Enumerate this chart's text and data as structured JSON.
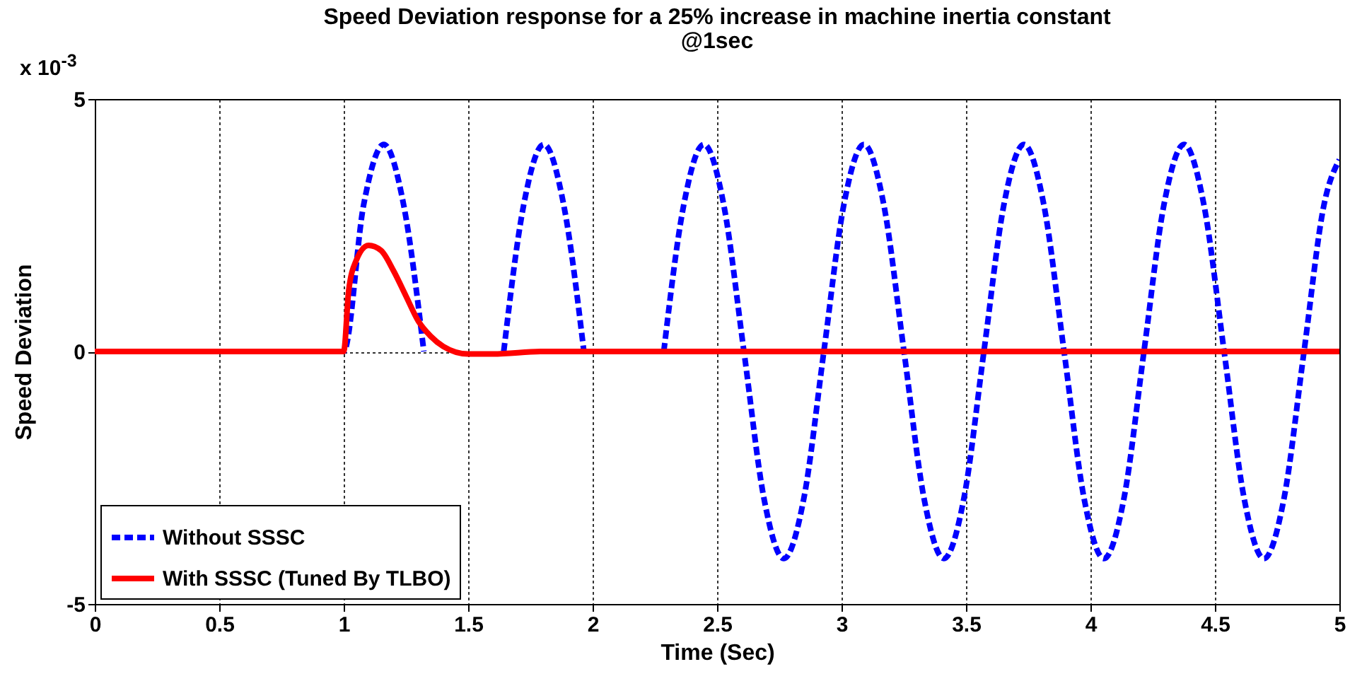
{
  "chart_data": {
    "type": "line",
    "title": "Speed Deviation response for a 25% increase in machine inertia constant",
    "subtitle": "@1sec",
    "xlabel": "Time (Sec)",
    "ylabel": "Speed Deviation",
    "annotations": [
      "x 10$^{-3}$"
    ],
    "xlim": [
      0,
      5
    ],
    "xticks": [
      0,
      0.5,
      1,
      1.5,
      2,
      2.5,
      3,
      3.5,
      4,
      4.5,
      5
    ],
    "ylim": [
      -5,
      5
    ],
    "yticks": [
      -5,
      0,
      5
    ],
    "grid": true,
    "legend": "bottom left",
    "series": [
      {
        "name": "Without SSSC",
        "color": "#0000ff",
        "line_style": "dashed",
        "x": [
          0,
          1.0,
          1.08,
          1.161,
          1.241,
          1.322,
          1.402,
          1.482,
          1.563,
          1.643,
          1.723,
          1.804,
          1.884,
          1.965,
          2.045,
          2.125,
          2.206,
          2.286,
          2.366,
          2.447,
          2.527,
          2.608,
          2.688,
          2.768,
          2.849,
          2.929,
          3.009,
          3.09,
          3.17,
          3.251,
          3.331,
          3.411,
          3.492,
          3.572,
          3.652,
          3.733,
          3.813,
          3.894,
          3.974,
          4.054,
          4.135,
          4.215,
          4.295,
          4.376,
          4.456,
          4.537,
          4.617,
          4.697,
          4.778,
          4.858,
          4.938,
          5.0
        ],
        "values": [
          0,
          0,
          2.9,
          4.1,
          2.9,
          0,
          null,
          null,
          null,
          0,
          2.9,
          4.1,
          2.9,
          0,
          null,
          null,
          null,
          0,
          2.9,
          4.1,
          2.9,
          0,
          -2.9,
          -4.1,
          -2.9,
          0,
          2.9,
          4.1,
          2.9,
          0,
          -2.9,
          -4.1,
          -2.9,
          0,
          2.9,
          4.1,
          2.9,
          0,
          -2.9,
          -4.1,
          -2.9,
          0,
          2.9,
          4.1,
          2.9,
          0,
          -2.9,
          -4.1,
          -2.9,
          0,
          2.9,
          3.8
        ]
      },
      {
        "name": "With SSSC (Tuned By TLBO)",
        "color": "#ff0000",
        "line_style": "solid",
        "x": [
          0,
          1.0,
          1.02,
          1.05,
          1.1,
          1.15,
          1.2,
          1.25,
          1.3,
          1.35,
          1.4,
          1.5,
          1.6,
          1.8,
          5
        ],
        "values": [
          0,
          0,
          1.2,
          1.8,
          2.1,
          2.0,
          1.6,
          1.1,
          0.6,
          0.3,
          0.1,
          -0.05,
          -0.05,
          0,
          0
        ]
      }
    ]
  }
}
